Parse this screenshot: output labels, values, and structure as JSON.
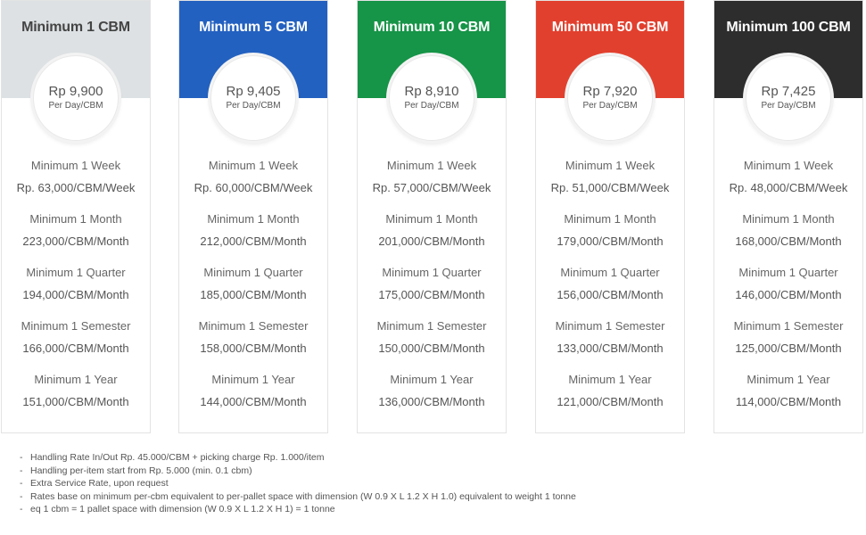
{
  "plans": [
    {
      "title": "Minimum 1 CBM",
      "header_color": "#dde1e3",
      "price": "Rp 9,900",
      "price_unit": "Per Day/CBM",
      "tiers": [
        {
          "label": "Minimum 1 Week",
          "rate": "Rp. 63,000/CBM/Week"
        },
        {
          "label": "Minimum 1 Month",
          "rate": "223,000/CBM/Month"
        },
        {
          "label": "Minimum 1 Quarter",
          "rate": "194,000/CBM/Month"
        },
        {
          "label": "Minimum 1 Semester",
          "rate": "166,000/CBM/Month"
        },
        {
          "label": "Minimum 1 Year",
          "rate": "151,000/CBM/Month"
        }
      ]
    },
    {
      "title": "Minimum 5 CBM",
      "header_color": "#2361c0",
      "price": "Rp 9,405",
      "price_unit": "Per Day/CBM",
      "tiers": [
        {
          "label": "Minimum 1 Week",
          "rate": "Rp. 60,000/CBM/Week"
        },
        {
          "label": "Minimum 1 Month",
          "rate": "212,000/CBM/Month"
        },
        {
          "label": "Minimum 1 Quarter",
          "rate": "185,000/CBM/Month"
        },
        {
          "label": "Minimum 1 Semester",
          "rate": "158,000/CBM/Month"
        },
        {
          "label": "Minimum 1 Year",
          "rate": "144,000/CBM/Month"
        }
      ]
    },
    {
      "title": "Minimum 10 CBM",
      "header_color": "#169447",
      "price": "Rp 8,910",
      "price_unit": "Per Day/CBM",
      "tiers": [
        {
          "label": "Minimum 1 Week",
          "rate": "Rp. 57,000/CBM/Week"
        },
        {
          "label": "Minimum 1 Month",
          "rate": "201,000/CBM/Month"
        },
        {
          "label": "Minimum 1 Quarter",
          "rate": "175,000/CBM/Month"
        },
        {
          "label": "Minimum 1 Semester",
          "rate": "150,000/CBM/Month"
        },
        {
          "label": "Minimum 1 Year",
          "rate": "136,000/CBM/Month"
        }
      ]
    },
    {
      "title": "Minimum 50 CBM",
      "header_color": "#e2402e",
      "price": "Rp 7,920",
      "price_unit": "Per Day/CBM",
      "tiers": [
        {
          "label": "Minimum 1 Week",
          "rate": "Rp. 51,000/CBM/Week"
        },
        {
          "label": "Minimum 1 Month",
          "rate": "179,000/CBM/Month"
        },
        {
          "label": "Minimum 1 Quarter",
          "rate": "156,000/CBM/Month"
        },
        {
          "label": "Minimum 1 Semester",
          "rate": "133,000/CBM/Month"
        },
        {
          "label": "Minimum 1 Year",
          "rate": "121,000/CBM/Month"
        }
      ]
    },
    {
      "title": "Minimum 100 CBM",
      "header_color": "#2d2d2d",
      "price": "Rp 7,425",
      "price_unit": "Per Day/CBM",
      "tiers": [
        {
          "label": "Minimum 1 Week",
          "rate": "Rp. 48,000/CBM/Week"
        },
        {
          "label": "Minimum 1 Month",
          "rate": "168,000/CBM/Month"
        },
        {
          "label": "Minimum 1 Quarter",
          "rate": "146,000/CBM/Month"
        },
        {
          "label": "Minimum 1 Semester",
          "rate": "125,000/CBM/Month"
        },
        {
          "label": "Minimum 1 Year",
          "rate": "114,000/CBM/Month"
        }
      ]
    }
  ],
  "notes": [
    "Handling Rate In/Out Rp. 45.000/CBM + picking charge Rp. 1.000/item",
    "Handling per-item start from Rp. 5.000 (min. 0.1 cbm)",
    "Extra Service Rate, upon request",
    "Rates base on minimum per-cbm equivalent to per-pallet space with dimension (W 0.9 X L 1.2 X H 1.0) equivalent to weight 1 tonne",
    "eq 1 cbm = 1 pallet space with dimension (W 0.9 X L 1.2 X H 1) = 1 tonne"
  ],
  "note_bullet": "-"
}
